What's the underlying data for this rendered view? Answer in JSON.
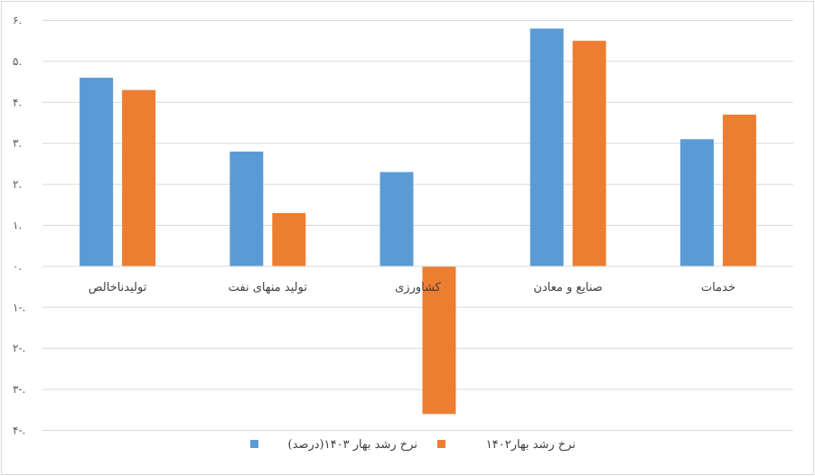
{
  "chart_data": {
    "type": "bar",
    "categories": [
      "تولیدناخالص",
      "تولید منهای نفت",
      "کشاورزی",
      "صنایع و معادن",
      "خدمات"
    ],
    "series": [
      {
        "name": "نرخ رشد بهار ۱۴۰۳(درصد)",
        "color": "#5b9bd5",
        "values": [
          4.6,
          2.8,
          2.3,
          5.8,
          3.1
        ]
      },
      {
        "name": "نرخ رشد بهار۱۴۰۲",
        "color": "#ed7d31",
        "values": [
          4.3,
          1.3,
          -3.6,
          5.5,
          3.7
        ]
      }
    ],
    "y_ticks": [
      {
        "value": 6,
        "label": "۶."
      },
      {
        "value": 5,
        "label": "۵."
      },
      {
        "value": 4,
        "label": "۴."
      },
      {
        "value": 3,
        "label": "۳."
      },
      {
        "value": 2,
        "label": "۲."
      },
      {
        "value": 1,
        "label": "۱."
      },
      {
        "value": 0,
        "label": "۰."
      },
      {
        "value": -1,
        "label": "۱-."
      },
      {
        "value": -2,
        "label": "۲-."
      },
      {
        "value": -3,
        "label": "۳-."
      },
      {
        "value": -4,
        "label": "۴-."
      }
    ],
    "ylim": [
      -4,
      6
    ],
    "grid": true,
    "legend_position": "bottom"
  }
}
